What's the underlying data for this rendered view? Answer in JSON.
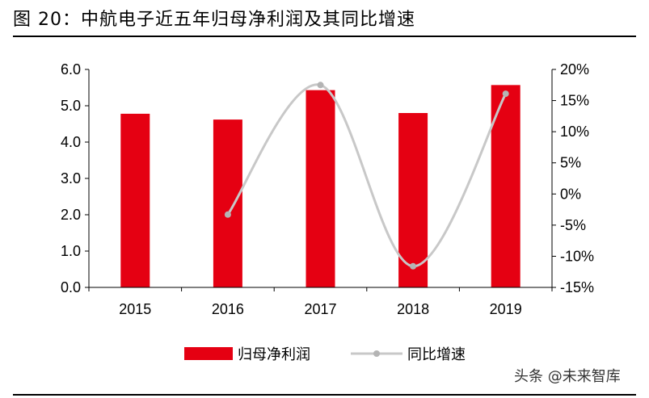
{
  "figure": {
    "title": "图 20：中航电子近五年归母净利润及其同比增速"
  },
  "watermark": {
    "text": "头条 @未来智库"
  },
  "colors": {
    "bar": "#e50012",
    "line": "#c8c8c8",
    "marker": "#b4b4b4",
    "axis": "#000000"
  },
  "chart_data": {
    "type": "bar",
    "categories": [
      "2015",
      "2016",
      "2017",
      "2018",
      "2019"
    ],
    "series": [
      {
        "name": "归母净利润",
        "type": "bar",
        "axis": "left",
        "values": [
          4.78,
          4.62,
          5.43,
          4.8,
          5.57
        ]
      },
      {
        "name": "同比增速",
        "type": "line",
        "axis": "right",
        "values": [
          null,
          -3.3,
          17.5,
          -11.6,
          16.1
        ]
      }
    ],
    "y_left": {
      "ylim": [
        0,
        6
      ],
      "ticks": [
        "0.0",
        "1.0",
        "2.0",
        "3.0",
        "4.0",
        "5.0",
        "6.0"
      ]
    },
    "y_right": {
      "ylim": [
        -15,
        20
      ],
      "ticks": [
        "-15%",
        "-10%",
        "-5%",
        "0%",
        "5%",
        "10%",
        "15%",
        "20%"
      ]
    },
    "legend": {
      "position": "bottom"
    },
    "grid": false
  }
}
